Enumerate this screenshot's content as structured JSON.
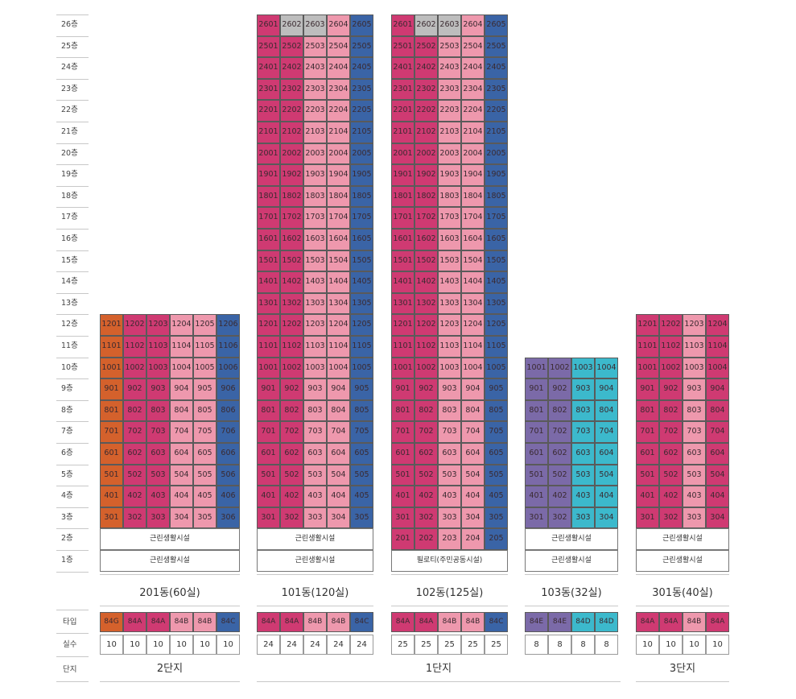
{
  "floor_labels": [
    "26층",
    "25층",
    "24층",
    "23층",
    "22층",
    "21층",
    "20층",
    "19층",
    "18층",
    "17층",
    "16층",
    "15층",
    "14층",
    "13층",
    "12층",
    "11층",
    "10층",
    "9층",
    "8층",
    "7층",
    "6층",
    "5층",
    "4층",
    "3층",
    "2층",
    "1층"
  ],
  "row_labels": {
    "type": "타입",
    "count": "실수",
    "complex": "단지"
  },
  "colors": {
    "84G": "#d4612c",
    "84A": "#cf3a72",
    "84B": "#ee98ad",
    "84C": "#3a64a6",
    "84E": "#7b6aa8",
    "84D": "#3cb9cc",
    "disabled": "#bdbdbd"
  },
  "buildings": [
    {
      "key": "b201",
      "name": "201동(60실)",
      "top_floor": 12,
      "unit_floor_min": 3,
      "lines": [
        "01",
        "02",
        "03",
        "04",
        "05",
        "06"
      ],
      "types": [
        "84G",
        "84A",
        "84A",
        "84B",
        "84B",
        "84C"
      ],
      "counts": [
        "10",
        "10",
        "10",
        "10",
        "10",
        "10"
      ],
      "facilities": {
        "2": "근린생활시설",
        "1": "근린생활시설"
      },
      "disabled": []
    },
    {
      "key": "b101",
      "name": "101동(120실)",
      "top_floor": 26,
      "unit_floor_min": 3,
      "lines": [
        "01",
        "02",
        "03",
        "04",
        "05"
      ],
      "types": [
        "84A",
        "84A",
        "84B",
        "84B",
        "84C"
      ],
      "counts": [
        "24",
        "24",
        "24",
        "24",
        "24"
      ],
      "facilities": {
        "2": "근린생활시설",
        "1": "근린생활시설"
      },
      "disabled": [
        "2602",
        "2603"
      ]
    },
    {
      "key": "b102",
      "name": "102동(125실)",
      "top_floor": 26,
      "unit_floor_min": 2,
      "lines": [
        "01",
        "02",
        "03",
        "04",
        "05"
      ],
      "types": [
        "84A",
        "84A",
        "84B",
        "84B",
        "84C"
      ],
      "counts": [
        "25",
        "25",
        "25",
        "25",
        "25"
      ],
      "facilities": {
        "1": "필로티(주민공동시설)"
      },
      "disabled": [
        "2602",
        "2603"
      ]
    },
    {
      "key": "b103",
      "name": "103동(32실)",
      "top_floor": 10,
      "unit_floor_min": 3,
      "lines": [
        "01",
        "02",
        "03",
        "04"
      ],
      "types": [
        "84E",
        "84E",
        "84D",
        "84D"
      ],
      "counts": [
        "8",
        "8",
        "8",
        "8"
      ],
      "facilities": {
        "2": "근린생활시설",
        "1": "근린생활시설"
      },
      "disabled": []
    },
    {
      "key": "b301",
      "name": "301동(40실)",
      "top_floor": 12,
      "unit_floor_min": 3,
      "lines": [
        "01",
        "02",
        "03",
        "04"
      ],
      "types": [
        "84A",
        "84A",
        "84B",
        "84A"
      ],
      "counts": [
        "10",
        "10",
        "10",
        "10"
      ],
      "facilities": {
        "2": "근린생활시설",
        "1": "근린생활시설"
      },
      "disabled": []
    }
  ],
  "complexes": [
    {
      "key": "c2",
      "name": "2단지"
    },
    {
      "key": "c1",
      "name": "1단지"
    },
    {
      "key": "c3",
      "name": "3단지"
    }
  ]
}
